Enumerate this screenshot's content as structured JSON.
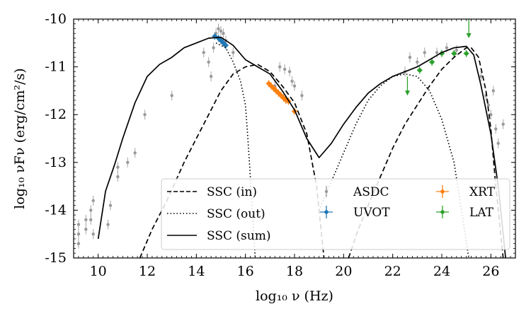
{
  "chart_data": {
    "type": "scatter",
    "xlabel": "log₁₀ ν  (Hz)",
    "ylabel": "log₁₀ νFν  (erg/cm²/s)",
    "xlim": [
      9.0,
      27.0
    ],
    "ylim": [
      -15,
      -10
    ],
    "x_ticks": [
      "10",
      "12",
      "14",
      "16",
      "18",
      "20",
      "22",
      "24",
      "26"
    ],
    "y_ticks": [
      "-10",
      "-11",
      "-12",
      "-13",
      "-14",
      "-15"
    ],
    "grid": false,
    "legend_position": "lower-right",
    "model_curves": [
      {
        "name": "SSC (in)",
        "style": "dashed",
        "color": "#000000",
        "branches": [
          [
            [
              11.7,
              -15.0
            ],
            [
              12.2,
              -14.4
            ],
            [
              12.8,
              -13.8
            ],
            [
              13.5,
              -13.0
            ],
            [
              14.0,
              -12.5
            ],
            [
              14.5,
              -12.0
            ],
            [
              15.0,
              -11.5
            ],
            [
              15.5,
              -11.15
            ],
            [
              16.0,
              -11.0
            ],
            [
              16.5,
              -10.95
            ],
            [
              17.0,
              -11.1
            ],
            [
              17.5,
              -11.4
            ],
            [
              18.0,
              -11.75
            ],
            [
              18.5,
              -12.4
            ],
            [
              18.9,
              -13.5
            ],
            [
              19.2,
              -15.0
            ]
          ],
          [
            [
              20.2,
              -15.0
            ],
            [
              20.6,
              -14.4
            ],
            [
              21.0,
              -13.9
            ],
            [
              21.5,
              -13.3
            ],
            [
              22.0,
              -12.7
            ],
            [
              22.5,
              -12.2
            ],
            [
              23.0,
              -11.8
            ],
            [
              23.5,
              -11.4
            ],
            [
              24.0,
              -11.05
            ],
            [
              24.5,
              -10.8
            ],
            [
              25.0,
              -10.6
            ],
            [
              25.2,
              -10.6
            ],
            [
              25.5,
              -10.8
            ],
            [
              25.8,
              -11.5
            ],
            [
              26.0,
              -12.3
            ],
            [
              26.2,
              -13.5
            ],
            [
              26.5,
              -15.0
            ]
          ]
        ]
      },
      {
        "name": "SSC (out)",
        "style": "dotted",
        "color": "#000000",
        "branches": [
          [
            [
              14.8,
              -10.5
            ],
            [
              15.2,
              -10.6
            ],
            [
              15.5,
              -10.9
            ],
            [
              15.8,
              -11.3
            ],
            [
              16.0,
              -11.8
            ],
            [
              16.1,
              -12.5
            ],
            [
              16.2,
              -13.3
            ],
            [
              16.3,
              -14.2
            ],
            [
              16.4,
              -15.0
            ]
          ],
          [
            [
              19.0,
              -14.0
            ],
            [
              19.5,
              -13.4
            ],
            [
              20.0,
              -12.8
            ],
            [
              20.5,
              -12.2
            ],
            [
              21.0,
              -11.7
            ],
            [
              21.5,
              -11.4
            ],
            [
              22.0,
              -11.2
            ],
            [
              22.5,
              -11.15
            ],
            [
              23.0,
              -11.2
            ],
            [
              23.5,
              -11.5
            ],
            [
              24.0,
              -12.1
            ],
            [
              24.5,
              -13.0
            ],
            [
              24.8,
              -14.0
            ],
            [
              25.1,
              -15.0
            ]
          ]
        ]
      },
      {
        "name": "SSC (sum)",
        "style": "solid",
        "color": "#000000",
        "branches": [
          [
            [
              10.0,
              -14.6
            ],
            [
              10.3,
              -13.6
            ],
            [
              10.7,
              -13.0
            ],
            [
              11.0,
              -12.5
            ],
            [
              11.5,
              -11.75
            ],
            [
              12.0,
              -11.2
            ],
            [
              12.5,
              -10.95
            ],
            [
              13.0,
              -10.8
            ],
            [
              13.5,
              -10.6
            ],
            [
              14.0,
              -10.5
            ],
            [
              14.5,
              -10.4
            ],
            [
              15.0,
              -10.38
            ],
            [
              15.5,
              -10.55
            ],
            [
              16.0,
              -10.85
            ],
            [
              16.5,
              -11.0
            ],
            [
              17.0,
              -11.15
            ],
            [
              17.5,
              -11.5
            ],
            [
              18.0,
              -11.9
            ],
            [
              18.5,
              -12.5
            ],
            [
              19.0,
              -12.9
            ],
            [
              19.5,
              -12.6
            ],
            [
              20.0,
              -12.2
            ],
            [
              20.5,
              -11.85
            ],
            [
              21.0,
              -11.55
            ],
            [
              21.5,
              -11.35
            ],
            [
              22.0,
              -11.2
            ],
            [
              22.5,
              -11.1
            ],
            [
              23.0,
              -11.0
            ],
            [
              23.5,
              -10.85
            ],
            [
              24.0,
              -10.7
            ],
            [
              24.5,
              -10.6
            ],
            [
              25.0,
              -10.57
            ],
            [
              25.3,
              -10.75
            ],
            [
              25.6,
              -11.4
            ],
            [
              26.0,
              -12.4
            ],
            [
              26.3,
              -13.5
            ],
            [
              26.5,
              -14.5
            ],
            [
              26.6,
              -15.0
            ]
          ]
        ]
      }
    ],
    "series": [
      {
        "name": "ASDC",
        "color": "#9a9a9a",
        "points": [
          [
            9.2,
            -14.3
          ],
          [
            9.2,
            -14.5
          ],
          [
            9.2,
            -14.7
          ],
          [
            9.5,
            -14.2
          ],
          [
            9.5,
            -14.4
          ],
          [
            9.7,
            -14.0
          ],
          [
            9.7,
            -14.2
          ],
          [
            9.8,
            -13.8
          ],
          [
            9.8,
            -14.5
          ],
          [
            10.4,
            -14.3
          ],
          [
            10.5,
            -13.9
          ],
          [
            10.8,
            -13.3
          ],
          [
            10.8,
            -13.1
          ],
          [
            11.2,
            -13.0
          ],
          [
            11.5,
            -12.8
          ],
          [
            11.9,
            -12.0
          ],
          [
            13.0,
            -11.6
          ],
          [
            14.3,
            -10.7
          ],
          [
            14.5,
            -10.9
          ],
          [
            14.6,
            -11.2
          ],
          [
            14.7,
            -10.6
          ],
          [
            14.8,
            -10.3
          ],
          [
            14.9,
            -10.2
          ],
          [
            15.0,
            -10.25
          ],
          [
            15.1,
            -10.3
          ],
          [
            15.2,
            -10.45
          ],
          [
            15.5,
            -10.7
          ],
          [
            17.2,
            -11.4
          ],
          [
            17.4,
            -11.0
          ],
          [
            17.6,
            -11.05
          ],
          [
            17.8,
            -11.1
          ],
          [
            17.9,
            -11.3
          ],
          [
            18.0,
            -11.4
          ],
          [
            18.3,
            -11.6
          ],
          [
            22.5,
            -11.1
          ],
          [
            22.7,
            -10.8
          ],
          [
            23.0,
            -10.9
          ],
          [
            23.3,
            -10.7
          ],
          [
            23.8,
            -10.7
          ],
          [
            24.2,
            -10.6
          ],
          [
            24.6,
            -10.65
          ],
          [
            25.6,
            -11.2
          ],
          [
            25.8,
            -11.6
          ],
          [
            25.9,
            -11.8
          ],
          [
            26.0,
            -12.0
          ],
          [
            26.1,
            -11.5
          ],
          [
            26.2,
            -12.3
          ],
          [
            26.3,
            -12.6
          ],
          [
            26.5,
            -12.2
          ]
        ]
      },
      {
        "name": "UVOT",
        "color": "#1f77b4",
        "points": [
          [
            14.75,
            -10.36
          ],
          [
            14.9,
            -10.4
          ],
          [
            15.0,
            -10.45
          ],
          [
            15.1,
            -10.5
          ],
          [
            15.2,
            -10.55
          ]
        ]
      },
      {
        "name": "XRT",
        "color": "#ff7f0e",
        "points": [
          [
            16.95,
            -11.35
          ],
          [
            17.05,
            -11.4
          ],
          [
            17.15,
            -11.45
          ],
          [
            17.25,
            -11.5
          ],
          [
            17.35,
            -11.55
          ],
          [
            17.45,
            -11.6
          ],
          [
            17.55,
            -11.65
          ],
          [
            17.65,
            -11.7
          ],
          [
            17.75,
            -11.72
          ],
          [
            18.0,
            -11.93
          ]
        ]
      },
      {
        "name": "LAT",
        "color": "#2ca02c",
        "points": [
          [
            23.1,
            -11.07
          ],
          [
            23.6,
            -10.9
          ],
          [
            24.0,
            -10.72
          ],
          [
            24.5,
            -10.72
          ],
          [
            25.0,
            -10.72
          ]
        ],
        "upper_limits": [
          [
            22.6,
            -11.2
          ],
          [
            25.1,
            -10.0
          ]
        ]
      }
    ]
  }
}
